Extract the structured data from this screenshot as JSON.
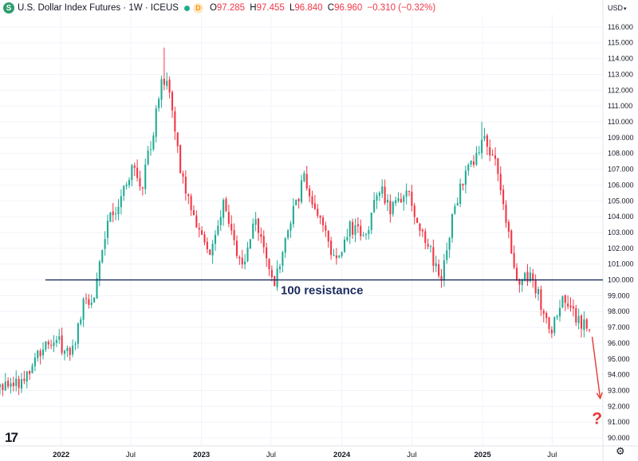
{
  "header": {
    "symbol_icon": "S",
    "title": "U.S. Dollar Index Futures · 1W · ICEUS",
    "status_dot_color": "#22ab94",
    "badge_letter": "D",
    "ohlc": {
      "o_label": "O",
      "o": "97.285",
      "h_label": "H",
      "h": "97.455",
      "l_label": "L",
      "l": "96.840",
      "c_label": "C",
      "c": "96.960",
      "change": "−0.310 (−0.32%)"
    }
  },
  "currency": "USD",
  "colors": {
    "up": "#22ab94",
    "down": "#f23645",
    "resistance": "#1a2a5e",
    "annotation": "#e53935"
  },
  "chart_data": {
    "type": "candlestick",
    "interval": "1W",
    "yticks": [
      "90.000",
      "91.000",
      "92.000",
      "93.000",
      "94.000",
      "95.000",
      "96.000",
      "97.000",
      "98.000",
      "99.000",
      "100.000",
      "101.000",
      "102.000",
      "103.000",
      "104.000",
      "105.000",
      "106.000",
      "107.000",
      "108.000",
      "109.000",
      "110.000",
      "111.000",
      "112.000",
      "113.000",
      "114.000",
      "115.000",
      "116.000"
    ],
    "ylim": [
      89.5,
      116.8
    ],
    "xticks": [
      {
        "label": "2022",
        "date": "2022-01-01"
      },
      {
        "label": "Jul",
        "date": "2022-07-01"
      },
      {
        "label": "2023",
        "date": "2023-01-01"
      },
      {
        "label": "Jul",
        "date": "2023-07-01"
      },
      {
        "label": "2024",
        "date": "2024-01-01"
      },
      {
        "label": "Jul",
        "date": "2024-07-01"
      },
      {
        "label": "2025",
        "date": "2025-01-01"
      },
      {
        "label": "Jul",
        "date": "2025-07-01"
      }
    ],
    "xlim": [
      "2021-07-26",
      "2025-11-10"
    ],
    "path": [
      [
        "2021-07-26",
        93.2
      ],
      [
        "2021-10-04",
        93.6
      ],
      [
        "2021-11-15",
        95.5
      ],
      [
        "2021-11-29",
        96.3
      ],
      [
        "2022-01-03",
        96.0
      ],
      [
        "2022-01-17",
        95.3
      ],
      [
        "2022-02-14",
        96.0
      ],
      [
        "2022-03-07",
        98.5
      ],
      [
        "2022-04-04",
        99.0
      ],
      [
        "2022-05-09",
        104.0
      ],
      [
        "2022-06-06",
        104.5
      ],
      [
        "2022-07-11",
        107.2
      ],
      [
        "2022-08-08",
        106.0
      ],
      [
        "2022-09-05",
        109.5
      ],
      [
        "2022-09-26",
        113.0
      ],
      [
        "2022-10-17",
        112.0
      ],
      [
        "2022-11-14",
        106.7
      ],
      [
        "2022-12-12",
        104.3
      ],
      [
        "2023-01-30",
        101.8
      ],
      [
        "2023-03-06",
        104.7
      ],
      [
        "2023-04-10",
        101.6
      ],
      [
        "2023-05-01",
        101.2
      ],
      [
        "2023-05-29",
        103.8
      ],
      [
        "2023-07-17",
        99.8
      ],
      [
        "2023-08-21",
        103.4
      ],
      [
        "2023-10-02",
        106.4
      ],
      [
        "2023-11-13",
        103.8
      ],
      [
        "2023-12-25",
        101.0
      ],
      [
        "2024-01-29",
        103.3
      ],
      [
        "2024-03-11",
        103.0
      ],
      [
        "2024-04-15",
        105.9
      ],
      [
        "2024-05-13",
        104.4
      ],
      [
        "2024-06-24",
        105.8
      ],
      [
        "2024-07-29",
        103.2
      ],
      [
        "2024-09-23",
        100.2
      ],
      [
        "2024-10-21",
        104.0
      ],
      [
        "2024-11-18",
        106.4
      ],
      [
        "2025-01-13",
        109.0
      ],
      [
        "2025-02-17",
        106.8
      ],
      [
        "2025-03-10",
        103.6
      ],
      [
        "2025-04-14",
        99.5
      ],
      [
        "2025-05-12",
        100.6
      ],
      [
        "2025-06-16",
        98.0
      ],
      [
        "2025-07-07",
        96.8
      ],
      [
        "2025-08-04",
        98.6
      ],
      [
        "2025-09-08",
        97.6
      ],
      [
        "2025-10-06",
        97.0
      ]
    ],
    "extremes": [
      {
        "date": "2022-09-26",
        "high": 114.7
      },
      {
        "date": "2024-12-30",
        "high": 110.0
      },
      {
        "date": "2023-07-17",
        "low": 99.3
      }
    ],
    "resistance": {
      "value": 100.0,
      "label": "100 resistance"
    },
    "forecast_arrow": {
      "from": [
        "2025-10-13",
        96.4
      ],
      "to": [
        "2025-11-03",
        92.5
      ]
    },
    "forecast_label": "?"
  }
}
